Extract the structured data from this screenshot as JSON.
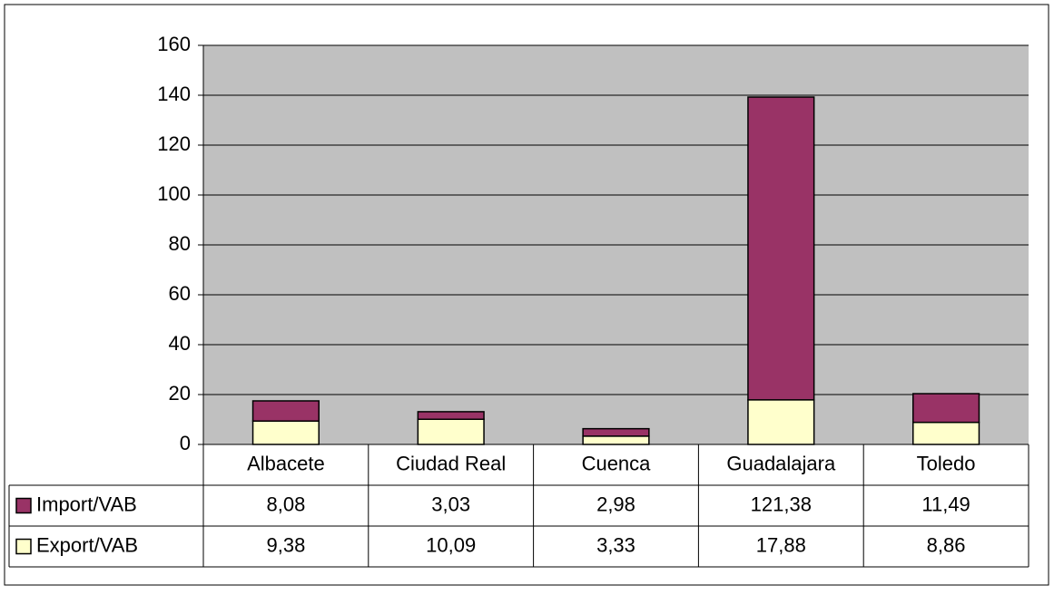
{
  "chart_data": {
    "type": "stacked_bar",
    "categories": [
      "Albacete",
      "Ciudad Real",
      "Cuenca",
      "Guadalajara",
      "Toledo"
    ],
    "series": [
      {
        "name": "Import/VAB",
        "color": "#993366",
        "values": [
          8.08,
          3.03,
          2.98,
          121.38,
          11.49
        ],
        "value_labels": [
          "8,08",
          "3,03",
          "2,98",
          "121,38",
          "11,49"
        ]
      },
      {
        "name": "Export/VAB",
        "color": "#FFFFCC",
        "values": [
          9.38,
          10.09,
          3.33,
          17.88,
          8.86
        ],
        "value_labels": [
          "9,38",
          "10,09",
          "3,33",
          "17,88",
          "8,86"
        ]
      }
    ],
    "ylim": [
      0,
      160
    ],
    "yticks": [
      0,
      20,
      40,
      60,
      80,
      100,
      120,
      140,
      160
    ],
    "grid": true
  }
}
